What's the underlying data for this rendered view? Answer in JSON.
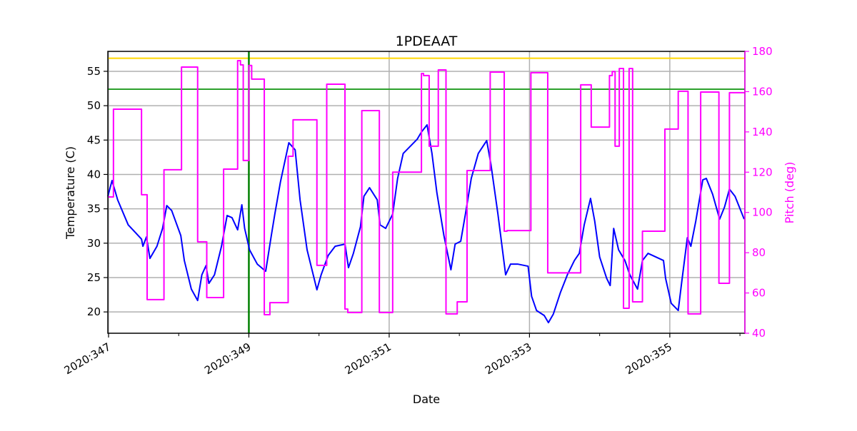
{
  "chart_data": {
    "type": "line",
    "title": "1PDEAAT",
    "xlabel": "Date",
    "ylabel": "Temperature (C)",
    "y2label": "Pitch (deg)",
    "xlim": [
      346.99,
      356.07
    ],
    "ylim": [
      16.9,
      57.9
    ],
    "y2lim": [
      40,
      180
    ],
    "x_ticks": [
      347,
      349,
      351,
      353,
      355
    ],
    "x_tick_labels": [
      "2020:347",
      "2020:349",
      "2020:351",
      "2020:353",
      "2020:355"
    ],
    "x_minor_ticks": [
      348,
      350,
      352,
      354,
      356
    ],
    "y_ticks": [
      20,
      25,
      30,
      35,
      40,
      45,
      50,
      55
    ],
    "y2_ticks": [
      40,
      60,
      80,
      100,
      120,
      140,
      160,
      180
    ],
    "grid": true,
    "colors": {
      "temperature": "#0000ff",
      "pitch": "#ff00ff",
      "limit_orange": "#ffd700",
      "limit_green": "#2ca02c",
      "time_marker": "#008000",
      "right_axis": "#ff00ff"
    },
    "reference_lines": {
      "orange_hline": 56.9,
      "green_hline": 52.4,
      "green_vline": 349.0
    },
    "series": [
      {
        "axis": "left",
        "color": "#0000ff",
        "style": "line",
        "x": [
          346.99,
          347.05,
          347.13,
          347.28,
          347.47,
          347.49,
          347.54,
          347.59,
          347.69,
          347.77,
          347.83,
          347.9,
          348.03,
          348.08,
          348.18,
          348.27,
          348.33,
          348.39,
          348.43,
          348.51,
          348.61,
          348.69,
          348.76,
          348.84,
          348.9,
          348.94,
          349.01,
          349.12,
          349.24,
          349.32,
          349.37,
          349.45,
          349.57,
          349.66,
          349.73,
          349.83,
          349.97,
          350.03,
          350.13,
          350.23,
          350.37,
          350.42,
          350.49,
          350.59,
          350.64,
          350.72,
          350.83,
          350.87,
          350.95,
          351.05,
          351.12,
          351.2,
          351.4,
          351.46,
          351.54,
          351.61,
          351.68,
          351.78,
          351.88,
          351.94,
          352.02,
          352.09,
          352.17,
          352.27,
          352.39,
          352.45,
          352.55,
          352.66,
          352.73,
          352.83,
          352.98,
          353.03,
          353.1,
          353.21,
          353.27,
          353.34,
          353.44,
          353.54,
          353.64,
          353.71,
          353.78,
          353.87,
          353.93,
          354.0,
          354.1,
          354.15,
          354.2,
          354.27,
          354.36,
          354.43,
          354.54,
          354.61,
          354.69,
          354.91,
          354.94,
          355.02,
          355.12,
          355.17,
          355.25,
          355.3,
          355.37,
          355.47,
          355.52,
          355.61,
          355.71,
          355.78,
          355.85,
          355.93,
          356.06
        ],
        "y": [
          36.82,
          39.11,
          36.3,
          32.67,
          30.59,
          29.55,
          30.9,
          27.79,
          29.55,
          32.15,
          35.47,
          34.75,
          31.11,
          27.48,
          23.32,
          21.66,
          25.4,
          26.75,
          24.15,
          25.4,
          29.55,
          34.02,
          33.71,
          31.94,
          35.58,
          32.15,
          29.03,
          26.96,
          25.92,
          31.11,
          34.23,
          38.9,
          44.61,
          43.57,
          36.3,
          29.03,
          23.22,
          25.4,
          28.2,
          29.55,
          29.86,
          26.44,
          28.52,
          32.36,
          36.82,
          38.07,
          36.3,
          32.67,
          32.15,
          34.23,
          39.42,
          43.05,
          45.13,
          46.17,
          47.21,
          43.05,
          37.34,
          31.11,
          26.13,
          29.86,
          30.28,
          34.43,
          39.42,
          43.05,
          44.92,
          41.5,
          34.23,
          25.4,
          26.96,
          26.96,
          26.65,
          22.28,
          20.21,
          19.48,
          18.44,
          19.69,
          22.8,
          25.4,
          27.48,
          28.52,
          32.67,
          36.51,
          33.19,
          28.0,
          24.88,
          23.84,
          32.15,
          29.03,
          27.48,
          25.4,
          23.32,
          27.48,
          28.52,
          27.48,
          24.88,
          21.25,
          20.21,
          24.36,
          30.8,
          29.55,
          33.19,
          39.21,
          39.42,
          37.13,
          33.5,
          35.26,
          37.86,
          36.82,
          33.5
        ]
      },
      {
        "axis": "right",
        "color": "#ff00ff",
        "style": "step",
        "x": [
          346.99,
          347.07,
          347.47,
          347.55,
          347.79,
          348.04,
          348.27,
          348.4,
          348.64,
          348.84,
          348.88,
          348.92,
          349.0,
          349.04,
          349.22,
          349.3,
          349.56,
          349.63,
          349.97,
          350.11,
          350.37,
          350.41,
          350.61,
          350.86,
          351.05,
          351.46,
          351.49,
          351.57,
          351.7,
          351.81,
          351.97,
          352.11,
          352.44,
          352.64,
          352.68,
          353.02,
          353.26,
          353.73,
          353.88,
          354.14,
          354.18,
          354.22,
          354.28,
          354.34,
          354.42,
          354.47,
          354.61,
          354.93,
          355.12,
          355.26,
          355.44,
          355.7,
          355.85,
          356.07
        ],
        "y": [
          107.7,
          151.3,
          108.8,
          56.7,
          121.2,
          172.2,
          85.4,
          57.7,
          121.5,
          175.4,
          173.3,
          125.8,
          173.0,
          166.2,
          49.2,
          55.2,
          127.9,
          146.0,
          73.7,
          163.7,
          52.0,
          50.3,
          150.6,
          50.3,
          120.0,
          169.0,
          168.0,
          132.9,
          170.8,
          49.6,
          55.6,
          120.8,
          169.7,
          90.7,
          91.0,
          169.4,
          70.0,
          163.4,
          142.4,
          168.0,
          170.0,
          132.9,
          171.5,
          52.4,
          171.5,
          55.6,
          90.7,
          141.4,
          160.2,
          49.6,
          159.8,
          64.8,
          159.5,
          159.5
        ]
      }
    ]
  }
}
